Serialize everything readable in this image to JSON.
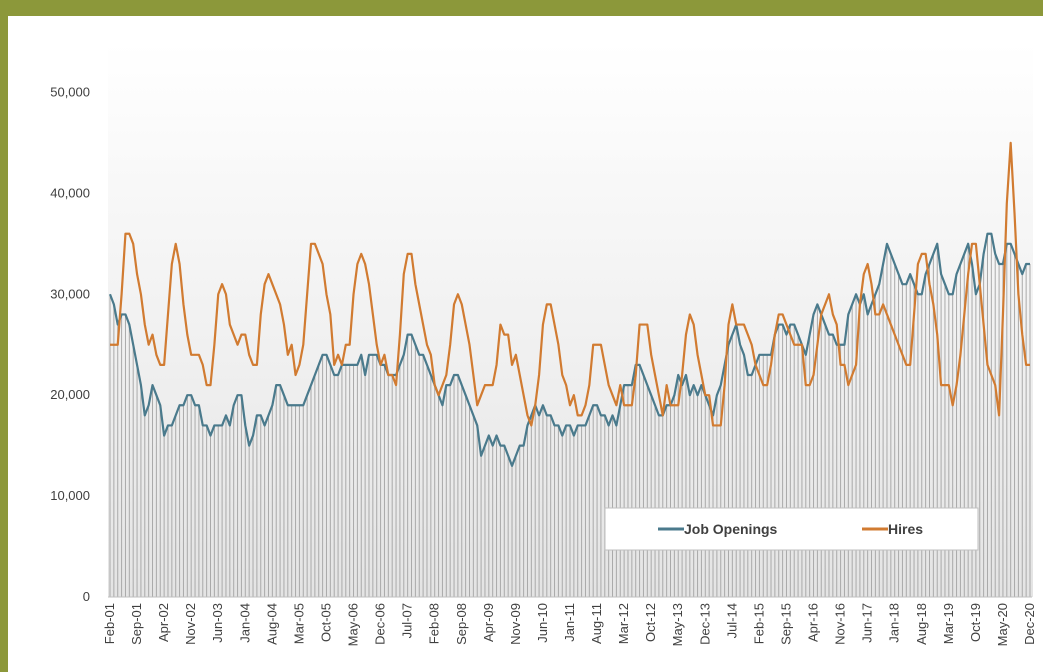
{
  "chart_data": {
    "type": "line",
    "categories": [
      "Feb-01",
      null,
      null,
      null,
      null,
      null,
      null,
      "Sep-01",
      null,
      null,
      null,
      null,
      null,
      null,
      "Apr-02",
      null,
      null,
      null,
      null,
      null,
      null,
      "Nov-02",
      null,
      null,
      null,
      null,
      null,
      null,
      "Jun-03",
      null,
      null,
      null,
      null,
      null,
      null,
      "Jan-04",
      null,
      null,
      null,
      null,
      null,
      null,
      "Aug-04",
      null,
      null,
      null,
      null,
      null,
      null,
      "Mar-05",
      null,
      null,
      null,
      null,
      null,
      null,
      "Oct-05",
      null,
      null,
      null,
      null,
      null,
      null,
      "May-06",
      null,
      null,
      null,
      null,
      null,
      null,
      "Dec-06",
      null,
      null,
      null,
      null,
      null,
      null,
      "Jul-07",
      null,
      null,
      null,
      null,
      null,
      null,
      "Feb-08",
      null,
      null,
      null,
      null,
      null,
      null,
      "Sep-08",
      null,
      null,
      null,
      null,
      null,
      null,
      "Apr-09",
      null,
      null,
      null,
      null,
      null,
      null,
      "Nov-09",
      null,
      null,
      null,
      null,
      null,
      null,
      "Jun-10",
      null,
      null,
      null,
      null,
      null,
      null,
      "Jan-11",
      null,
      null,
      null,
      null,
      null,
      null,
      "Aug-11",
      null,
      null,
      null,
      null,
      null,
      null,
      "Mar-12",
      null,
      null,
      null,
      null,
      null,
      null,
      "Oct-12",
      null,
      null,
      null,
      null,
      null,
      null,
      "May-13",
      null,
      null,
      null,
      null,
      null,
      null,
      "Dec-13",
      null,
      null,
      null,
      null,
      null,
      null,
      "Jul-14",
      null,
      null,
      null,
      null,
      null,
      null,
      "Feb-15",
      null,
      null,
      null,
      null,
      null,
      null,
      "Sep-15",
      null,
      null,
      null,
      null,
      null,
      null,
      "Apr-16",
      null,
      null,
      null,
      null,
      null,
      null,
      "Nov-16",
      null,
      null,
      null,
      null,
      null,
      null,
      "Jun-17",
      null,
      null,
      null,
      null,
      null,
      null,
      "Jan-18",
      null,
      null,
      null,
      null,
      null,
      null,
      "Aug-18",
      null,
      null,
      null,
      null,
      null,
      null,
      "Mar-19",
      null,
      null,
      null,
      null,
      null,
      null,
      "Oct-19",
      null,
      null,
      null,
      null,
      null,
      null,
      "May-20",
      null,
      null,
      null,
      null,
      null,
      null,
      "Dec-20"
    ],
    "series": [
      {
        "name": "Job Openings",
        "color": "#4a7a8c",
        "values": [
          30000,
          29000,
          27000,
          28000,
          28000,
          27000,
          25000,
          23000,
          21000,
          18000,
          19000,
          21000,
          20000,
          19000,
          16000,
          17000,
          17000,
          18000,
          19000,
          19000,
          20000,
          20000,
          19000,
          19000,
          17000,
          17000,
          16000,
          17000,
          17000,
          17000,
          18000,
          17000,
          19000,
          20000,
          20000,
          17000,
          15000,
          16000,
          18000,
          18000,
          17000,
          18000,
          19000,
          21000,
          21000,
          20000,
          19000,
          19000,
          19000,
          19000,
          19000,
          20000,
          21000,
          22000,
          23000,
          24000,
          24000,
          23000,
          22000,
          22000,
          23000,
          23000,
          23000,
          23000,
          23000,
          24000,
          22000,
          24000,
          24000,
          24000,
          23000,
          23000,
          22000,
          22000,
          22000,
          23000,
          24000,
          26000,
          26000,
          25000,
          24000,
          24000,
          23000,
          22000,
          21000,
          20000,
          19000,
          21000,
          21000,
          22000,
          22000,
          21000,
          20000,
          19000,
          18000,
          17000,
          14000,
          15000,
          16000,
          15000,
          16000,
          15000,
          15000,
          14000,
          13000,
          14000,
          15000,
          15000,
          17000,
          18000,
          19000,
          18000,
          19000,
          18000,
          18000,
          17000,
          17000,
          16000,
          17000,
          17000,
          16000,
          17000,
          17000,
          17000,
          18000,
          19000,
          19000,
          18000,
          18000,
          17000,
          18000,
          17000,
          19000,
          21000,
          21000,
          21000,
          23000,
          23000,
          22000,
          21000,
          20000,
          19000,
          18000,
          18000,
          19000,
          19000,
          20000,
          22000,
          21000,
          22000,
          20000,
          21000,
          20000,
          21000,
          20000,
          19000,
          18000,
          20000,
          21000,
          23000,
          25000,
          26000,
          27000,
          25000,
          24000,
          22000,
          22000,
          23000,
          24000,
          24000,
          24000,
          24000,
          26000,
          27000,
          27000,
          26000,
          27000,
          27000,
          26000,
          25000,
          24000,
          26000,
          28000,
          29000,
          28000,
          27000,
          26000,
          26000,
          25000,
          25000,
          25000,
          28000,
          29000,
          30000,
          29000,
          30000,
          28000,
          29000,
          30000,
          31000,
          33000,
          35000,
          34000,
          33000,
          32000,
          31000,
          31000,
          32000,
          31000,
          30000,
          30000,
          32000,
          33000,
          34000,
          35000,
          32000,
          31000,
          30000,
          30000,
          32000,
          33000,
          34000,
          35000,
          33000,
          30000,
          31000,
          34000,
          36000,
          36000,
          34000,
          33000,
          33000,
          35000,
          35000,
          34000,
          33000,
          32000,
          33000,
          33000
        ]
      },
      {
        "name": "Hires",
        "color": "#d17b31",
        "values": [
          25000,
          25000,
          25000,
          30000,
          36000,
          36000,
          35000,
          32000,
          30000,
          27000,
          25000,
          26000,
          24000,
          23000,
          23000,
          28000,
          33000,
          35000,
          33000,
          29000,
          26000,
          24000,
          24000,
          24000,
          23000,
          21000,
          21000,
          25000,
          30000,
          31000,
          30000,
          27000,
          26000,
          25000,
          26000,
          26000,
          24000,
          23000,
          23000,
          28000,
          31000,
          32000,
          31000,
          30000,
          29000,
          27000,
          24000,
          25000,
          22000,
          23000,
          25000,
          30000,
          35000,
          35000,
          34000,
          33000,
          30000,
          28000,
          23000,
          24000,
          23000,
          25000,
          25000,
          30000,
          33000,
          34000,
          33000,
          31000,
          28000,
          25000,
          23000,
          24000,
          22000,
          22000,
          21000,
          26000,
          32000,
          34000,
          34000,
          31000,
          29000,
          27000,
          25000,
          24000,
          21000,
          20000,
          21000,
          22000,
          25000,
          29000,
          30000,
          29000,
          27000,
          25000,
          22000,
          19000,
          20000,
          21000,
          21000,
          21000,
          23000,
          27000,
          26000,
          26000,
          23000,
          24000,
          22000,
          20000,
          18000,
          17000,
          19000,
          22000,
          27000,
          29000,
          29000,
          27000,
          25000,
          22000,
          21000,
          19000,
          20000,
          18000,
          18000,
          19000,
          21000,
          25000,
          25000,
          25000,
          23000,
          21000,
          20000,
          19000,
          21000,
          19000,
          19000,
          19000,
          22000,
          27000,
          27000,
          27000,
          24000,
          22000,
          20000,
          18000,
          21000,
          19000,
          19000,
          19000,
          22000,
          26000,
          28000,
          27000,
          24000,
          22000,
          20000,
          20000,
          17000,
          17000,
          17000,
          21000,
          27000,
          29000,
          27000,
          27000,
          27000,
          26000,
          25000,
          23000,
          22000,
          21000,
          21000,
          23000,
          26000,
          28000,
          28000,
          27000,
          26000,
          25000,
          25000,
          25000,
          21000,
          21000,
          22000,
          25000,
          28000,
          29000,
          30000,
          28000,
          27000,
          23000,
          23000,
          21000,
          22000,
          23000,
          29000,
          32000,
          33000,
          31000,
          28000,
          28000,
          29000,
          28000,
          27000,
          26000,
          25000,
          24000,
          23000,
          23000,
          28000,
          33000,
          34000,
          34000,
          31000,
          29000,
          26000,
          21000,
          21000,
          21000,
          19000,
          21000,
          24000,
          28000,
          32000,
          35000,
          35000,
          31000,
          27000,
          23000,
          22000,
          21000,
          18000,
          28000,
          39000,
          45000,
          38000,
          30000,
          26000,
          23000,
          23000
        ]
      }
    ],
    "ylim": [
      0,
      55000
    ],
    "yticks": [
      0,
      {
        "value": 10000,
        "label": "10,000"
      },
      {
        "value": 20000,
        "label": "20,000"
      },
      {
        "value": 30000,
        "label": "30,000"
      },
      {
        "value": 40000,
        "label": "40,000"
      },
      {
        "value": 50000,
        "label": "50,000"
      }
    ],
    "legend": "lower-right"
  }
}
